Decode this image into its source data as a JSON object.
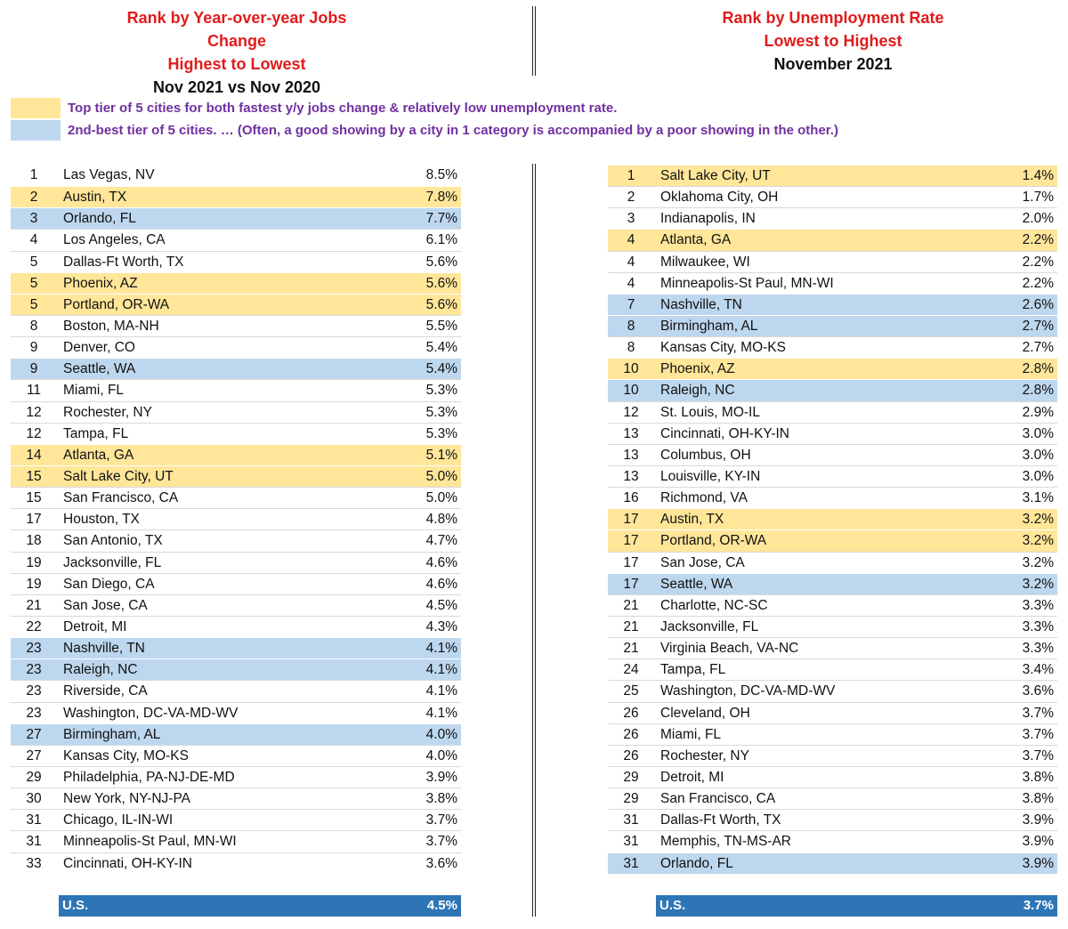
{
  "left_header": {
    "line1": "Rank by Year-over-year Jobs Change",
    "line2": "Highest to Lowest",
    "line3": "Nov 2021 vs Nov 2020"
  },
  "right_header": {
    "line1": "Rank by Unemployment Rate",
    "line2": "Lowest to Highest",
    "line3": "November 2021"
  },
  "colors": {
    "top_tier": "#ffe699",
    "second_tier": "#bdd7ee",
    "header_red": "#e01b1b",
    "legend_purple": "#7030a0",
    "us_bar": "#2e75b6"
  },
  "legend": {
    "top_tier": "Top tier of  5 cities for both fastest y/y jobs change & relatively low unemployment rate.",
    "second_tier": "2nd-best tier of 5 cities. … (Often, a good showing by a city in 1 category is accompanied by a poor showing in the other.)"
  },
  "left_table": {
    "rows": [
      {
        "rank": "1",
        "city": "Las Vegas, NV",
        "value": "8.5%",
        "tier": "plain"
      },
      {
        "rank": "2",
        "city": "Austin, TX",
        "value": "7.8%",
        "tier": "top"
      },
      {
        "rank": "3",
        "city": "Orlando, FL",
        "value": "7.7%",
        "tier": "second"
      },
      {
        "rank": "4",
        "city": "Los Angeles, CA",
        "value": "6.1%",
        "tier": "plain"
      },
      {
        "rank": "5",
        "city": "Dallas-Ft Worth, TX",
        "value": "5.6%",
        "tier": "plain"
      },
      {
        "rank": "5",
        "city": "Phoenix, AZ",
        "value": "5.6%",
        "tier": "top"
      },
      {
        "rank": "5",
        "city": "Portland, OR-WA",
        "value": "5.6%",
        "tier": "top"
      },
      {
        "rank": "8",
        "city": "Boston, MA-NH",
        "value": "5.5%",
        "tier": "plain"
      },
      {
        "rank": "9",
        "city": "Denver, CO",
        "value": "5.4%",
        "tier": "plain"
      },
      {
        "rank": "9",
        "city": "Seattle, WA",
        "value": "5.4%",
        "tier": "second"
      },
      {
        "rank": "11",
        "city": "Miami, FL",
        "value": "5.3%",
        "tier": "plain"
      },
      {
        "rank": "12",
        "city": "Rochester, NY",
        "value": "5.3%",
        "tier": "plain"
      },
      {
        "rank": "12",
        "city": "Tampa, FL",
        "value": "5.3%",
        "tier": "plain"
      },
      {
        "rank": "14",
        "city": "Atlanta, GA",
        "value": "5.1%",
        "tier": "top"
      },
      {
        "rank": "15",
        "city": "Salt Lake City, UT",
        "value": "5.0%",
        "tier": "top"
      },
      {
        "rank": "15",
        "city": "San Francisco, CA",
        "value": "5.0%",
        "tier": "plain"
      },
      {
        "rank": "17",
        "city": "Houston, TX",
        "value": "4.8%",
        "tier": "plain"
      },
      {
        "rank": "18",
        "city": "San Antonio, TX",
        "value": "4.7%",
        "tier": "plain"
      },
      {
        "rank": "19",
        "city": "Jacksonville, FL",
        "value": "4.6%",
        "tier": "plain"
      },
      {
        "rank": "19",
        "city": "San Diego, CA",
        "value": "4.6%",
        "tier": "plain"
      },
      {
        "rank": "21",
        "city": "San Jose, CA",
        "value": "4.5%",
        "tier": "plain"
      },
      {
        "rank": "22",
        "city": "Detroit, MI",
        "value": "4.3%",
        "tier": "plain"
      },
      {
        "rank": "23",
        "city": "Nashville, TN",
        "value": "4.1%",
        "tier": "second"
      },
      {
        "rank": "23",
        "city": "Raleigh, NC",
        "value": "4.1%",
        "tier": "second"
      },
      {
        "rank": "23",
        "city": "Riverside, CA",
        "value": "4.1%",
        "tier": "plain"
      },
      {
        "rank": "23",
        "city": "Washington, DC-VA-MD-WV",
        "value": "4.1%",
        "tier": "plain"
      },
      {
        "rank": "27",
        "city": "Birmingham, AL",
        "value": "4.0%",
        "tier": "second"
      },
      {
        "rank": "27",
        "city": "Kansas City, MO-KS",
        "value": "4.0%",
        "tier": "plain"
      },
      {
        "rank": "29",
        "city": "Philadelphia, PA-NJ-DE-MD",
        "value": "3.9%",
        "tier": "plain"
      },
      {
        "rank": "30",
        "city": "New York, NY-NJ-PA",
        "value": "3.8%",
        "tier": "plain"
      },
      {
        "rank": "31",
        "city": "Chicago, IL-IN-WI",
        "value": "3.7%",
        "tier": "plain"
      },
      {
        "rank": "31",
        "city": "Minneapolis-St Paul, MN-WI",
        "value": "3.7%",
        "tier": "plain"
      },
      {
        "rank": "33",
        "city": "Cincinnati, OH-KY-IN",
        "value": "3.6%",
        "tier": "plain"
      }
    ],
    "us_label": "U.S.",
    "us_value": "4.5%"
  },
  "right_table": {
    "rows": [
      {
        "rank": "1",
        "city": "Salt Lake City, UT",
        "value": "1.4%",
        "tier": "top"
      },
      {
        "rank": "2",
        "city": "Oklahoma City, OH",
        "value": "1.7%",
        "tier": "plain"
      },
      {
        "rank": "3",
        "city": "Indianapolis, IN",
        "value": "2.0%",
        "tier": "plain"
      },
      {
        "rank": "4",
        "city": "Atlanta, GA",
        "value": "2.2%",
        "tier": "top"
      },
      {
        "rank": "4",
        "city": "Milwaukee, WI",
        "value": "2.2%",
        "tier": "plain"
      },
      {
        "rank": "4",
        "city": "Minneapolis-St Paul, MN-WI",
        "value": "2.2%",
        "tier": "plain"
      },
      {
        "rank": "7",
        "city": "Nashville, TN",
        "value": "2.6%",
        "tier": "second"
      },
      {
        "rank": "8",
        "city": "Birmingham, AL",
        "value": "2.7%",
        "tier": "second"
      },
      {
        "rank": "8",
        "city": "Kansas City, MO-KS",
        "value": "2.7%",
        "tier": "plain"
      },
      {
        "rank": "10",
        "city": "Phoenix, AZ",
        "value": "2.8%",
        "tier": "top"
      },
      {
        "rank": "10",
        "city": "Raleigh, NC",
        "value": "2.8%",
        "tier": "second"
      },
      {
        "rank": "12",
        "city": "St. Louis, MO-IL",
        "value": "2.9%",
        "tier": "plain"
      },
      {
        "rank": "13",
        "city": "Cincinnati, OH-KY-IN",
        "value": "3.0%",
        "tier": "plain"
      },
      {
        "rank": "13",
        "city": "Columbus, OH",
        "value": "3.0%",
        "tier": "plain"
      },
      {
        "rank": "13",
        "city": "Louisville, KY-IN",
        "value": "3.0%",
        "tier": "plain"
      },
      {
        "rank": "16",
        "city": "Richmond, VA",
        "value": "3.1%",
        "tier": "plain"
      },
      {
        "rank": "17",
        "city": "Austin, TX",
        "value": "3.2%",
        "tier": "top"
      },
      {
        "rank": "17",
        "city": "Portland, OR-WA",
        "value": "3.2%",
        "tier": "top"
      },
      {
        "rank": "17",
        "city": "San Jose, CA",
        "value": "3.2%",
        "tier": "plain"
      },
      {
        "rank": "17",
        "city": "Seattle, WA",
        "value": "3.2%",
        "tier": "second"
      },
      {
        "rank": "21",
        "city": "Charlotte, NC-SC",
        "value": "3.3%",
        "tier": "plain"
      },
      {
        "rank": "21",
        "city": "Jacksonville, FL",
        "value": "3.3%",
        "tier": "plain"
      },
      {
        "rank": "21",
        "city": "Virginia Beach, VA-NC",
        "value": "3.3%",
        "tier": "plain"
      },
      {
        "rank": "24",
        "city": "Tampa, FL",
        "value": "3.4%",
        "tier": "plain"
      },
      {
        "rank": "25",
        "city": "Washington, DC-VA-MD-WV",
        "value": "3.6%",
        "tier": "plain"
      },
      {
        "rank": "26",
        "city": "Cleveland, OH",
        "value": "3.7%",
        "tier": "plain"
      },
      {
        "rank": "26",
        "city": "Miami, FL",
        "value": "3.7%",
        "tier": "plain"
      },
      {
        "rank": "26",
        "city": "Rochester, NY",
        "value": "3.7%",
        "tier": "plain"
      },
      {
        "rank": "29",
        "city": "Detroit, MI",
        "value": "3.8%",
        "tier": "plain"
      },
      {
        "rank": "29",
        "city": "San Francisco, CA",
        "value": "3.8%",
        "tier": "plain"
      },
      {
        "rank": "31",
        "city": "Dallas-Ft Worth, TX",
        "value": "3.9%",
        "tier": "plain"
      },
      {
        "rank": "31",
        "city": "Memphis, TN-MS-AR",
        "value": "3.9%",
        "tier": "plain"
      },
      {
        "rank": "31",
        "city": "Orlando, FL",
        "value": "3.9%",
        "tier": "second"
      }
    ],
    "us_label": "U.S.",
    "us_value": "3.7%"
  }
}
